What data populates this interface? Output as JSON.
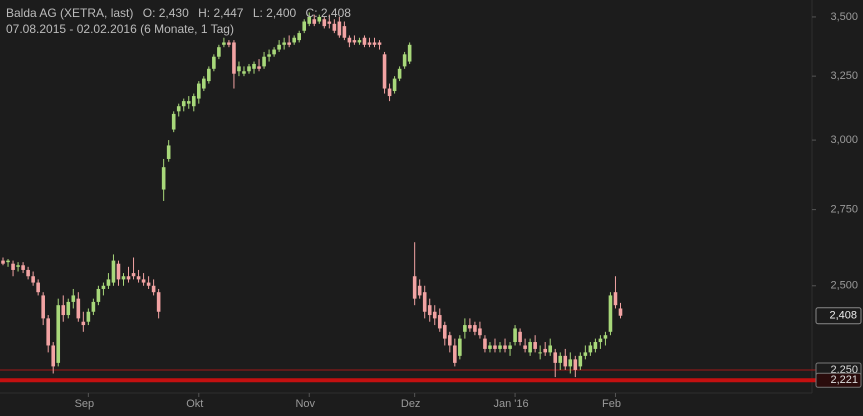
{
  "chart_data": {
    "type": "candlestick",
    "title": "Balda AG (XETRA, last)",
    "ohlc_labels": [
      "O: 2,430",
      "H: 2,447",
      "L: 2,400",
      "C: 2,408"
    ],
    "subtitle": "07.08.2015 - 02.02.2016 (6 Monate, 1 Tag)",
    "yscale": "log",
    "ylim": [
      2186,
      3575
    ],
    "yticks": [
      {
        "value": 2250,
        "label": "2,250"
      },
      {
        "value": 2500,
        "label": "2,500"
      },
      {
        "value": 2750,
        "label": "2,750"
      },
      {
        "value": 3000,
        "label": "3,000"
      },
      {
        "value": 3250,
        "label": "3,250"
      },
      {
        "value": 3500,
        "label": "3,500"
      }
    ],
    "up_color": "#a8d87a",
    "down_color": "#f2a3a3",
    "price_lines": [
      {
        "value": 2250,
        "label": "2,250",
        "color": "#a01818"
      },
      {
        "value": 2221,
        "label": "2,221",
        "color": "#c41010"
      }
    ],
    "last_price": {
      "value": 2408,
      "label": "2,408"
    },
    "categories": [
      null,
      null,
      null,
      null,
      null,
      null,
      null,
      null,
      null,
      null,
      null,
      null,
      null,
      null,
      null,
      null,
      null,
      "Sep",
      null,
      null,
      null,
      null,
      null,
      null,
      null,
      null,
      null,
      null,
      null,
      null,
      null,
      null,
      null,
      null,
      null,
      null,
      null,
      null,
      null,
      "Okt",
      null,
      null,
      null,
      null,
      null,
      null,
      null,
      null,
      null,
      null,
      null,
      null,
      null,
      null,
      null,
      null,
      null,
      null,
      null,
      null,
      null,
      "Nov",
      null,
      null,
      null,
      null,
      null,
      null,
      null,
      null,
      null,
      null,
      null,
      null,
      null,
      null,
      null,
      null,
      null,
      null,
      null,
      null,
      "Dez",
      null,
      null,
      null,
      null,
      null,
      null,
      null,
      null,
      null,
      null,
      null,
      null,
      null,
      null,
      null,
      null,
      null,
      null,
      null,
      "Jan '16",
      null,
      null,
      null,
      null,
      null,
      null,
      null,
      null,
      null,
      null,
      null,
      null,
      null,
      null,
      null,
      null,
      null,
      null,
      null,
      "Feb",
      null
    ],
    "open": [
      2580,
      2575,
      2570,
      2560,
      2565,
      2550,
      2530,
      2510,
      2470,
      2400,
      2320,
      2270,
      2440,
      2410,
      2450,
      2460,
      2390,
      2390,
      2420,
      2450,
      2490,
      2500,
      2510,
      2570,
      2520,
      2530,
      2540,
      2530,
      2520,
      2510,
      2500,
      2480,
      2820,
      2930,
      3040,
      3110,
      3130,
      3140,
      3130,
      3160,
      3200,
      3230,
      3280,
      3330,
      3380,
      3390,
      3390,
      3270,
      3260,
      3270,
      3280,
      3290,
      3290,
      3330,
      3340,
      3360,
      3380,
      3390,
      3390,
      3400,
      3440,
      3470,
      3490,
      3480,
      3490,
      3480,
      3470,
      3480,
      3460,
      3410,
      3400,
      3390,
      3410,
      3390,
      3390,
      3390,
      3340,
      3200,
      3190,
      3240,
      3290,
      3310,
      2530,
      2500,
      2480,
      2440,
      2420,
      2410,
      2380,
      2350,
      2320,
      2290,
      2360,
      2380,
      2380,
      2370,
      2340,
      2310,
      2320,
      2310,
      2320,
      2310,
      2330,
      2360,
      2320,
      2300,
      2330,
      2300,
      2310,
      2300,
      2300,
      2270,
      2290,
      2260,
      2280,
      2260,
      2290,
      2300,
      2310,
      2330,
      2340,
      2360,
      2480,
      2430
    ],
    "high": [
      2590,
      2585,
      2580,
      2575,
      2575,
      2560,
      2545,
      2520,
      2480,
      2410,
      2330,
      2460,
      2470,
      2460,
      2490,
      2480,
      2420,
      2430,
      2460,
      2500,
      2510,
      2540,
      2600,
      2580,
      2540,
      2560,
      2590,
      2550,
      2540,
      2530,
      2520,
      2490,
      2930,
      3000,
      3110,
      3140,
      3160,
      3170,
      3180,
      3230,
      3250,
      3290,
      3340,
      3380,
      3410,
      3400,
      3400,
      3310,
      3290,
      3300,
      3310,
      3320,
      3350,
      3360,
      3370,
      3400,
      3410,
      3420,
      3420,
      3440,
      3490,
      3520,
      3510,
      3510,
      3500,
      3510,
      3490,
      3500,
      3480,
      3420,
      3420,
      3410,
      3420,
      3410,
      3410,
      3400,
      3350,
      3220,
      3250,
      3290,
      3350,
      3390,
      2640,
      2520,
      2500,
      2460,
      2440,
      2430,
      2390,
      2360,
      2340,
      2350,
      2400,
      2400,
      2390,
      2390,
      2350,
      2330,
      2340,
      2330,
      2340,
      2330,
      2380,
      2370,
      2340,
      2340,
      2350,
      2320,
      2330,
      2340,
      2310,
      2300,
      2310,
      2300,
      2290,
      2300,
      2320,
      2330,
      2340,
      2350,
      2360,
      2480,
      2530,
      2447
    ],
    "low": [
      2565,
      2560,
      2530,
      2545,
      2540,
      2520,
      2500,
      2470,
      2380,
      2300,
      2240,
      2260,
      2390,
      2400,
      2430,
      2390,
      2360,
      2380,
      2410,
      2440,
      2470,
      2490,
      2500,
      2500,
      2500,
      2510,
      2520,
      2510,
      2500,
      2490,
      2470,
      2400,
      2780,
      2920,
      3030,
      3090,
      3110,
      3120,
      3110,
      3140,
      3190,
      3220,
      3270,
      3320,
      3370,
      3370,
      3200,
      3250,
      3250,
      3260,
      3260,
      3270,
      3280,
      3310,
      3330,
      3350,
      3360,
      3370,
      3380,
      3390,
      3430,
      3460,
      3460,
      3470,
      3450,
      3450,
      3430,
      3410,
      3400,
      3370,
      3380,
      3380,
      3370,
      3370,
      3370,
      3360,
      3180,
      3150,
      3180,
      3230,
      3280,
      3300,
      2440,
      2460,
      2400,
      2390,
      2380,
      2360,
      2320,
      2300,
      2260,
      2280,
      2340,
      2360,
      2350,
      2340,
      2300,
      2300,
      2300,
      2300,
      2300,
      2290,
      2320,
      2320,
      2300,
      2290,
      2300,
      2280,
      2290,
      2290,
      2230,
      2250,
      2250,
      2240,
      2230,
      2250,
      2280,
      2290,
      2300,
      2310,
      2320,
      2350,
      2430,
      2400
    ],
    "close": [
      2570,
      2580,
      2550,
      2565,
      2550,
      2530,
      2510,
      2480,
      2400,
      2320,
      2260,
      2440,
      2410,
      2450,
      2470,
      2400,
      2380,
      2420,
      2450,
      2490,
      2500,
      2520,
      2580,
      2520,
      2530,
      2520,
      2530,
      2520,
      2510,
      2500,
      2480,
      2420,
      2900,
      2980,
      3100,
      3130,
      3150,
      3150,
      3170,
      3220,
      3240,
      3280,
      3330,
      3370,
      3390,
      3380,
      3260,
      3290,
      3270,
      3290,
      3300,
      3280,
      3330,
      3340,
      3360,
      3380,
      3390,
      3380,
      3410,
      3430,
      3480,
      3500,
      3470,
      3500,
      3460,
      3470,
      3440,
      3420,
      3410,
      3390,
      3390,
      3400,
      3380,
      3380,
      3380,
      3380,
      3200,
      3170,
      3240,
      3280,
      3340,
      3380,
      2460,
      2470,
      2420,
      2410,
      2400,
      2370,
      2340,
      2320,
      2270,
      2340,
      2380,
      2370,
      2360,
      2350,
      2310,
      2320,
      2310,
      2320,
      2310,
      2320,
      2370,
      2330,
      2310,
      2330,
      2310,
      2300,
      2300,
      2320,
      2270,
      2290,
      2260,
      2280,
      2250,
      2290,
      2300,
      2320,
      2330,
      2340,
      2350,
      2470,
      2440,
      2408
    ]
  }
}
